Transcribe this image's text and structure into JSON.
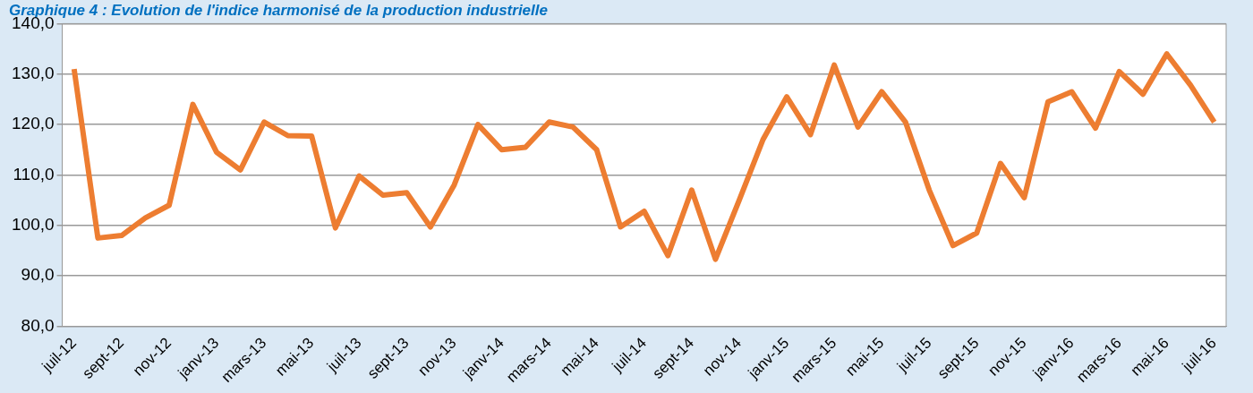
{
  "chart_data": {
    "type": "line",
    "title": "Graphique 4 : Evolution de l'indice harmonisé de la production industrielle",
    "categories": [
      "juil-12",
      null,
      "sept-12",
      null,
      "nov-12",
      null,
      "janv-13",
      null,
      "mars-13",
      null,
      "mai-13",
      null,
      "juil-13",
      null,
      "sept-13",
      null,
      "nov-13",
      null,
      "janv-14",
      null,
      "mars-14",
      null,
      "mai-14",
      null,
      "juil-14",
      null,
      "sept-14",
      null,
      "nov-14",
      null,
      "janv-15",
      null,
      "mars-15",
      null,
      "mai-15",
      null,
      "juil-15",
      null,
      "sept-15",
      null,
      "nov-15",
      null,
      "janv-16",
      null,
      "mars-16",
      null,
      "mai-16",
      null,
      "juil-16"
    ],
    "series": [
      {
        "color": "#ed7d31",
        "values": [
          131,
          97.5,
          98,
          101.5,
          104,
          124,
          114.5,
          111,
          120.5,
          117.8,
          117.7,
          99.5,
          109.8,
          106,
          106.5,
          99.7,
          108,
          120,
          115,
          115.5,
          120.5,
          119.5,
          115,
          99.7,
          102.8,
          94,
          107,
          93.3,
          105,
          117,
          125.5,
          118,
          131.8,
          119.5,
          126.5,
          120.5,
          107,
          96,
          98.5,
          112.3,
          105.5,
          124.5,
          126.5,
          119.3,
          130.5,
          126,
          134,
          127.8,
          120.5
        ]
      }
    ],
    "ylim": [
      80,
      140
    ],
    "yticks": [
      {
        "value": 80,
        "label": "80,0"
      },
      {
        "value": 90,
        "label": "90,0"
      },
      {
        "value": 100,
        "label": "100,0"
      },
      {
        "value": 110,
        "label": "110,0"
      },
      {
        "value": 120,
        "label": "120,0"
      },
      {
        "value": 130,
        "label": "130,0"
      },
      {
        "value": 140,
        "label": "140,0"
      }
    ],
    "grid": "y",
    "legend": false,
    "marker": "none",
    "line_style": "solid"
  }
}
